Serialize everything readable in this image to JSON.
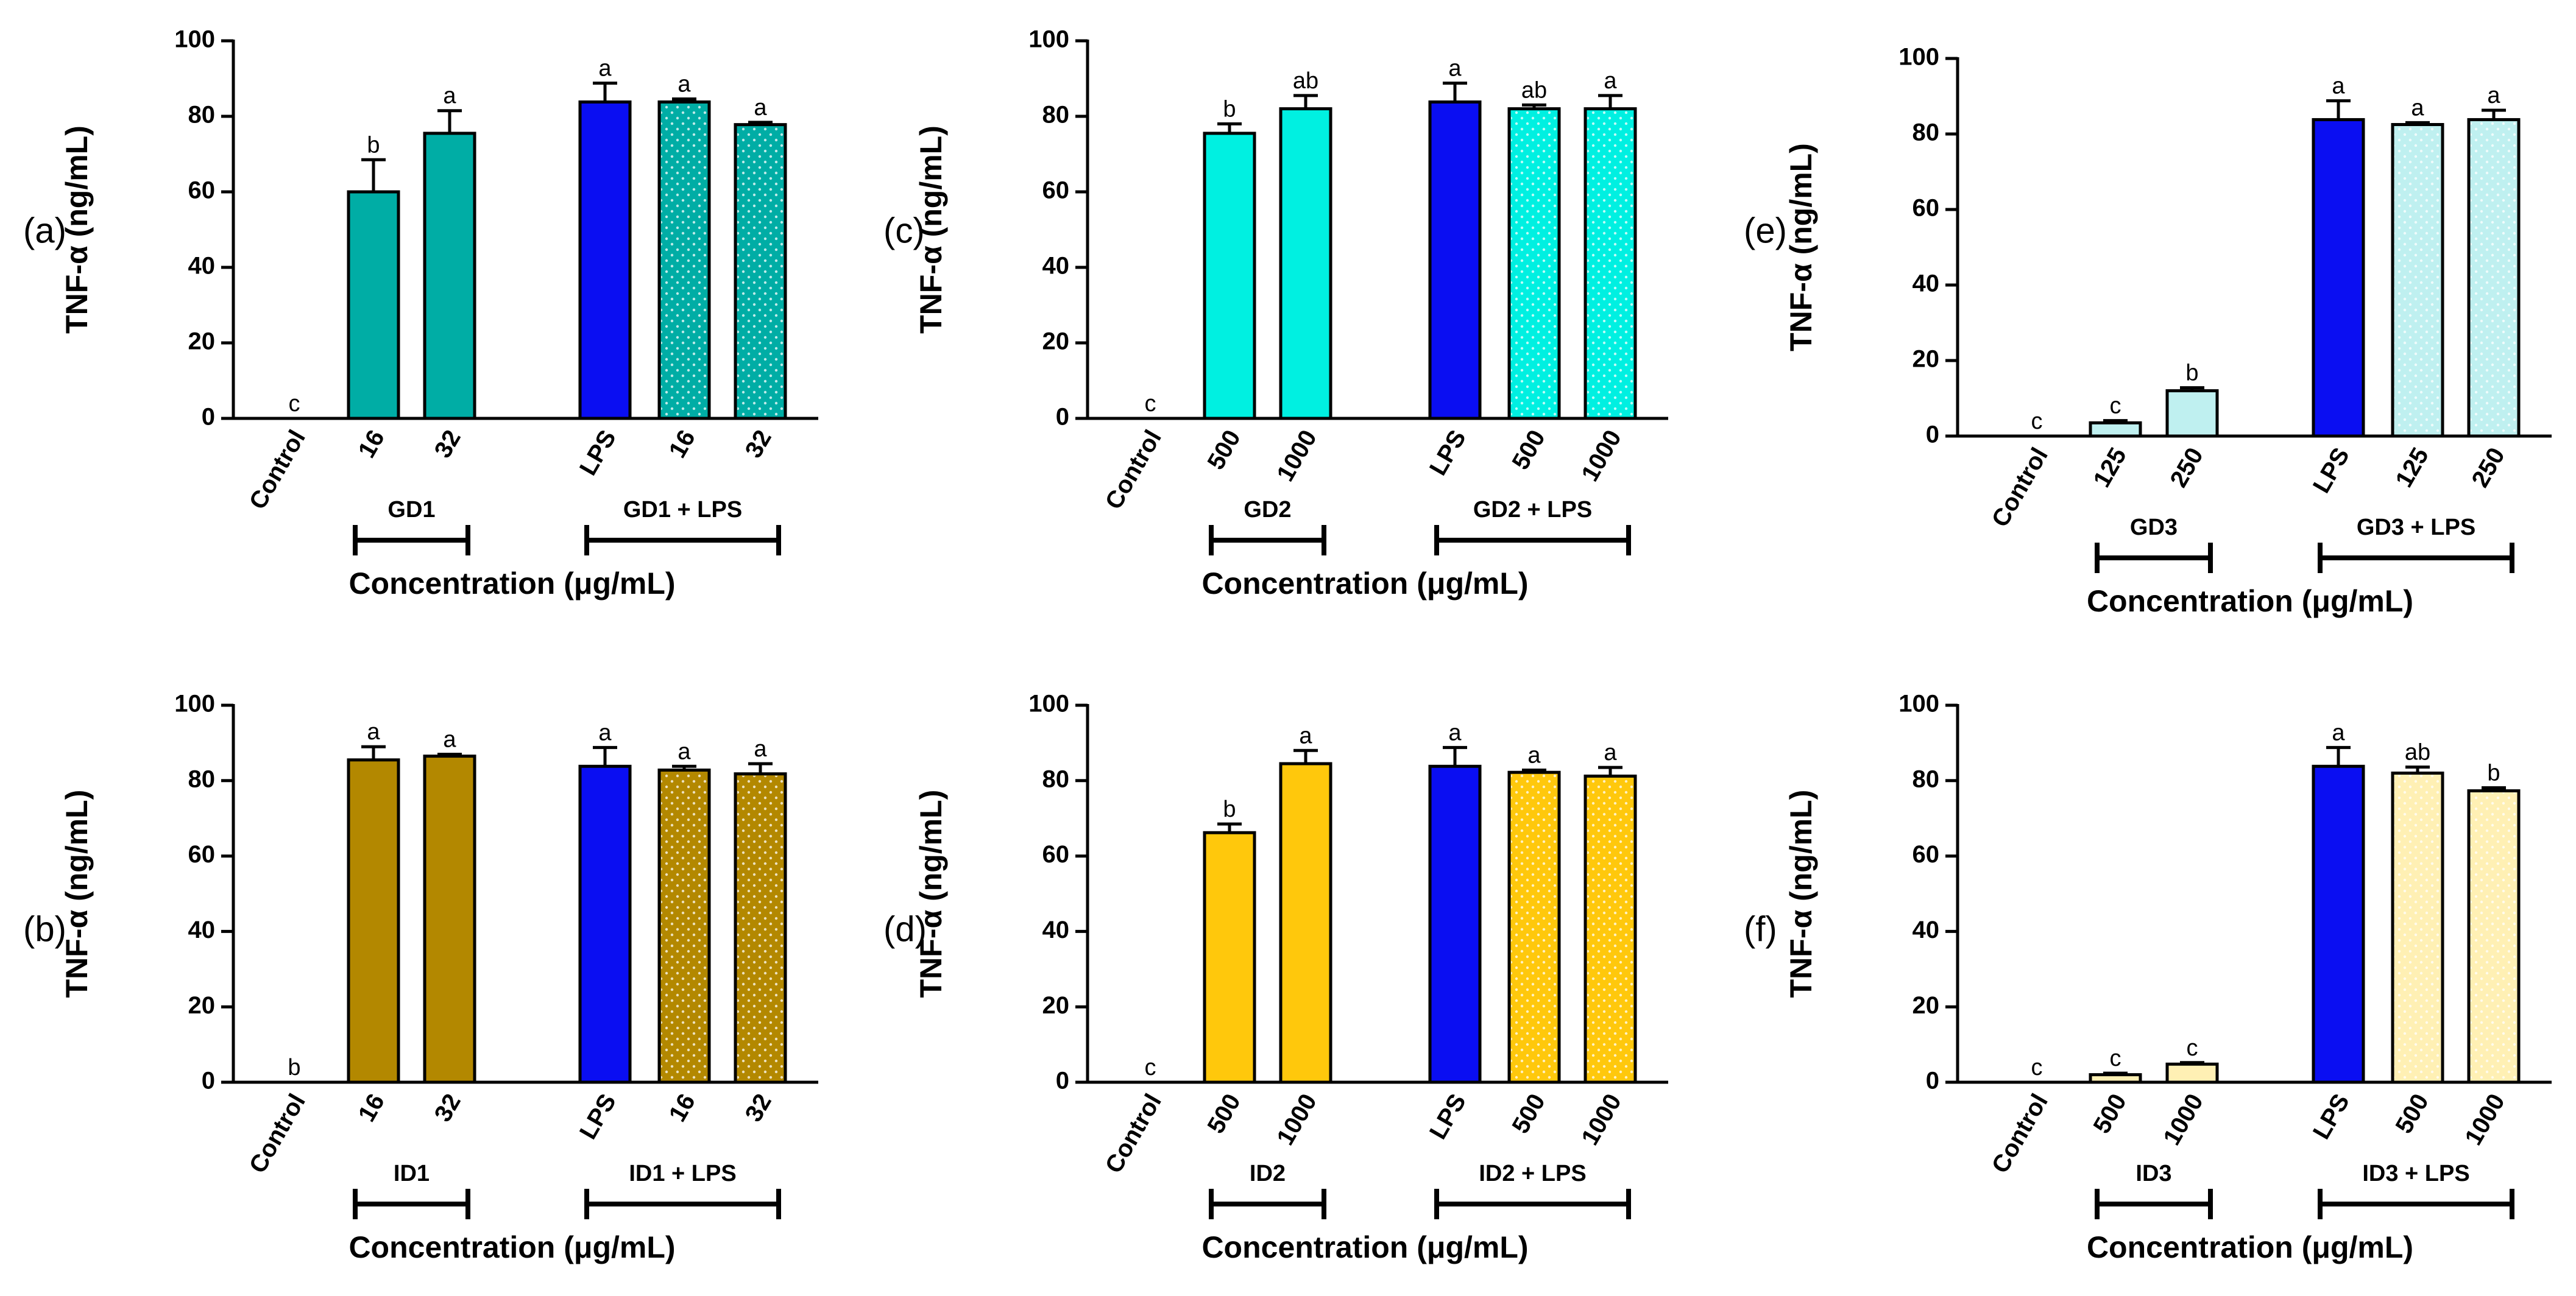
{
  "figure": {
    "colors": {
      "lps": "#0a0ef2",
      "gd1": "#00ada5",
      "gd2": "#00f0e1",
      "gd3": "#bff0f0",
      "id1": "#b38800",
      "id2": "#ffc80c",
      "id3": "#fff0b4"
    }
  },
  "chart_data": [
    {
      "type": "bar",
      "panel": "(a)",
      "ylabel": "TNF-α (ng/mL)",
      "xlabel": "Concentration (μg/mL)",
      "ylim": [
        0,
        100
      ],
      "yticks": [
        0,
        20,
        40,
        60,
        80,
        100
      ],
      "categories": [
        "Control",
        "16",
        "32",
        "LPS",
        "16",
        "32"
      ],
      "values": [
        0,
        60,
        75.5,
        83.8,
        83.8,
        77.8
      ],
      "errors": [
        0,
        8.5,
        6,
        5,
        0.8,
        0.6
      ],
      "significance": [
        "c",
        "b",
        "a",
        "a",
        "a",
        "a"
      ],
      "groups": [
        {
          "label": "GD1",
          "from": 1,
          "to": 2
        },
        {
          "label": "GD1 + LPS",
          "from": 3,
          "to": 5
        }
      ],
      "fill": [
        "none",
        "gd1",
        "gd1",
        "lps",
        "gd1",
        "gd1"
      ],
      "dotted": [
        false,
        false,
        false,
        false,
        true,
        true
      ]
    },
    {
      "type": "bar",
      "panel": "(b)",
      "ylabel": "TNF-α (ng/mL)",
      "xlabel": "Concentration (μg/mL)",
      "ylim": [
        0,
        100
      ],
      "yticks": [
        0,
        20,
        40,
        60,
        80,
        100
      ],
      "categories": [
        "Control",
        "16",
        "32",
        "LPS",
        "16",
        "32"
      ],
      "values": [
        0,
        85.5,
        86.5,
        83.8,
        82.8,
        81.8
      ],
      "errors": [
        0,
        3.5,
        0.5,
        5,
        1,
        2.7
      ],
      "significance": [
        "b",
        "a",
        "a",
        "a",
        "a",
        "a"
      ],
      "groups": [
        {
          "label": "ID1",
          "from": 1,
          "to": 2
        },
        {
          "label": "ID1 + LPS",
          "from": 3,
          "to": 5
        }
      ],
      "fill": [
        "none",
        "id1",
        "id1",
        "lps",
        "id1",
        "id1"
      ],
      "dotted": [
        false,
        false,
        false,
        false,
        true,
        true
      ]
    },
    {
      "type": "bar",
      "panel": "(c)",
      "ylabel": "TNF-α (ng/mL)",
      "xlabel": "Concentration (μg/mL)",
      "ylim": [
        0,
        100
      ],
      "yticks": [
        0,
        20,
        40,
        60,
        80,
        100
      ],
      "categories": [
        "Control",
        "500",
        "1000",
        "LPS",
        "500",
        "1000"
      ],
      "values": [
        0,
        75.5,
        82,
        83.8,
        82,
        82
      ],
      "errors": [
        0,
        2.5,
        3.5,
        5,
        1,
        3.5
      ],
      "significance": [
        "c",
        "b",
        "ab",
        "a",
        "ab",
        "a"
      ],
      "groups": [
        {
          "label": "GD2",
          "from": 1,
          "to": 2
        },
        {
          "label": "GD2 + LPS",
          "from": 3,
          "to": 5
        }
      ],
      "fill": [
        "none",
        "gd2",
        "gd2",
        "lps",
        "gd2",
        "gd2"
      ],
      "dotted": [
        false,
        false,
        false,
        false,
        true,
        true
      ]
    },
    {
      "type": "bar",
      "panel": "(d)",
      "ylabel": "TNF-α (ng/mL)",
      "xlabel": "Concentration (μg/mL)",
      "ylim": [
        0,
        100
      ],
      "yticks": [
        0,
        20,
        40,
        60,
        80,
        100
      ],
      "categories": [
        "Control",
        "500",
        "1000",
        "LPS",
        "500",
        "1000"
      ],
      "values": [
        0,
        66.2,
        84.5,
        83.8,
        82.2,
        81.2
      ],
      "errors": [
        0,
        2.3,
        3.5,
        5,
        0.6,
        2.3
      ],
      "significance": [
        "c",
        "b",
        "a",
        "a",
        "a",
        "a"
      ],
      "groups": [
        {
          "label": "ID2",
          "from": 1,
          "to": 2
        },
        {
          "label": "ID2 + LPS",
          "from": 3,
          "to": 5
        }
      ],
      "fill": [
        "none",
        "id2",
        "id2",
        "lps",
        "id2",
        "id2"
      ],
      "dotted": [
        false,
        false,
        false,
        false,
        true,
        true
      ]
    },
    {
      "type": "bar",
      "panel": "(e)",
      "ylabel": "TNF-α (ng/mL)",
      "xlabel": "Concentration (μg/mL)",
      "ylim": [
        0,
        100
      ],
      "yticks": [
        0,
        20,
        40,
        60,
        80,
        100
      ],
      "categories": [
        "Control",
        "125",
        "250",
        "LPS",
        "125",
        "250"
      ],
      "values": [
        0,
        3.5,
        12,
        83.8,
        82.5,
        83.8
      ],
      "errors": [
        0,
        0.6,
        0.8,
        5,
        0.5,
        2.5
      ],
      "significance": [
        "c",
        "c",
        "b",
        "a",
        "a",
        "a"
      ],
      "groups": [
        {
          "label": "GD3",
          "from": 1,
          "to": 2
        },
        {
          "label": "GD3 + LPS",
          "from": 3,
          "to": 5
        }
      ],
      "fill": [
        "none",
        "gd3",
        "gd3",
        "lps",
        "gd3",
        "gd3"
      ],
      "dotted": [
        false,
        false,
        false,
        false,
        true,
        true
      ]
    },
    {
      "type": "bar",
      "panel": "(f)",
      "ylabel": "TNF-α (ng/mL)",
      "xlabel": "Concentration (μg/mL)",
      "ylim": [
        0,
        100
      ],
      "yticks": [
        0,
        20,
        40,
        60,
        80,
        100
      ],
      "categories": [
        "Control",
        "500",
        "1000",
        "LPS",
        "500",
        "1000"
      ],
      "values": [
        0,
        2,
        4.8,
        83.8,
        82,
        77.3
      ],
      "errors": [
        0,
        0.4,
        0.4,
        5,
        1.6,
        0.8
      ],
      "significance": [
        "c",
        "c",
        "c",
        "a",
        "ab",
        "b"
      ],
      "groups": [
        {
          "label": "ID3",
          "from": 1,
          "to": 2
        },
        {
          "label": "ID3 + LPS",
          "from": 3,
          "to": 5
        }
      ],
      "fill": [
        "none",
        "id3",
        "id3",
        "lps",
        "id3",
        "id3"
      ],
      "dotted": [
        false,
        false,
        false,
        false,
        true,
        true
      ]
    }
  ]
}
